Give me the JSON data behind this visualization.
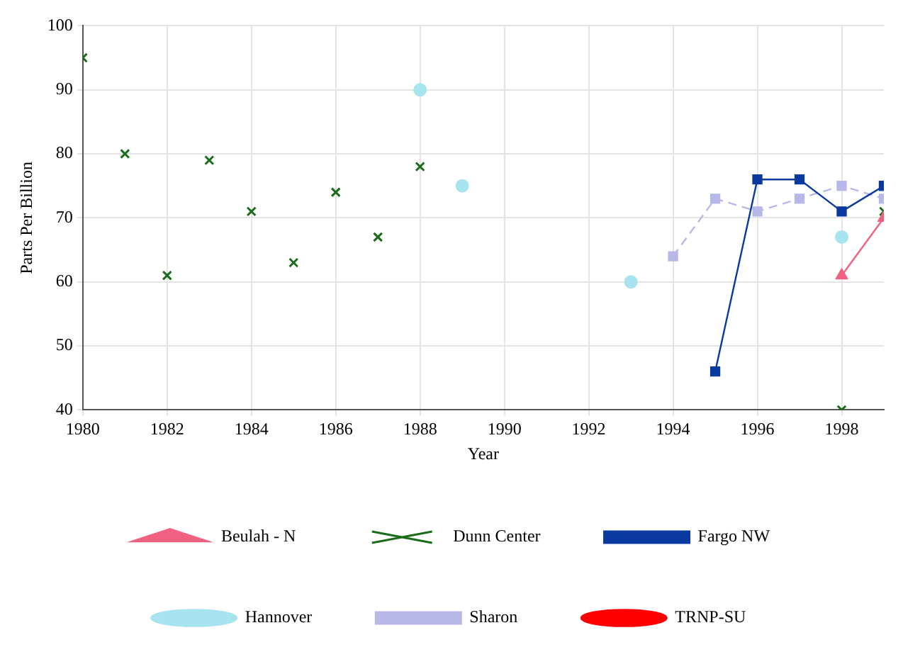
{
  "chart_data": {
    "type": "line",
    "xlabel": "Year",
    "ylabel": "Parts Per Billion",
    "xlim": [
      1980,
      1999
    ],
    "ylim": [
      40,
      100
    ],
    "xticks": [
      1980,
      1982,
      1984,
      1986,
      1988,
      1990,
      1992,
      1994,
      1996,
      1998
    ],
    "yticks": [
      40,
      50,
      60,
      70,
      80,
      90,
      100
    ],
    "grid": true,
    "legend": "bottom",
    "series": [
      {
        "name": "Beulah - N",
        "color": "#f06080",
        "marker": "triangle",
        "line_style": "solid",
        "x": [
          1998,
          1999
        ],
        "values": [
          61,
          70
        ]
      },
      {
        "name": "Dunn Center",
        "color": "#1a6b1a",
        "type": "scatter",
        "marker": "cross",
        "line_style": "none",
        "x": [
          1980,
          1981,
          1982,
          1983,
          1984,
          1985,
          1986,
          1987,
          1988,
          1998,
          1999
        ],
        "values": [
          95,
          80,
          61,
          79,
          71,
          63,
          74,
          67,
          78,
          40,
          71
        ]
      },
      {
        "name": "Fargo NW",
        "color": "#0a3aa0",
        "marker": "square",
        "line_style": "solid",
        "x": [
          1995,
          1996,
          1997,
          1998,
          1999
        ],
        "values": [
          46,
          76,
          76,
          71,
          75
        ]
      },
      {
        "name": "Hannover",
        "color": "#a8e4f0",
        "type": "scatter",
        "marker": "circle",
        "line_style": "none",
        "x": [
          1988,
          1989,
          1993,
          1998
        ],
        "values": [
          90,
          75,
          60,
          67
        ]
      },
      {
        "name": "Sharon",
        "color": "#b8b8e8",
        "marker": "square",
        "line_style": "dashed",
        "x": [
          1994,
          1995,
          1996,
          1997,
          1998,
          1999
        ],
        "values": [
          64,
          73,
          71,
          73,
          75,
          73
        ]
      },
      {
        "name": "TRNP-SU",
        "color": "#ff0000",
        "marker": "circle",
        "line_style": "solid"
      }
    ]
  }
}
